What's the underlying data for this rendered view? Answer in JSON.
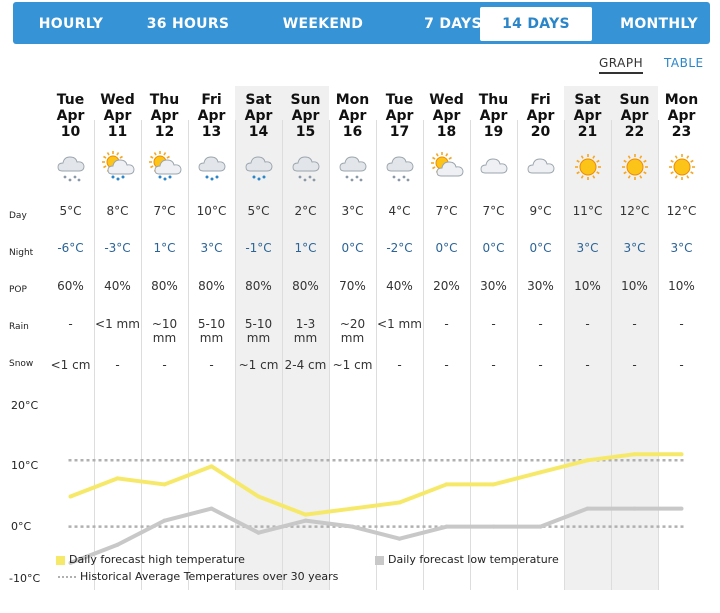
{
  "tabs": [
    {
      "label": "HOURLY",
      "active": false
    },
    {
      "label": "36 HOURS",
      "active": false
    },
    {
      "label": "WEEKEND",
      "active": false
    },
    {
      "label": "7 DAYS",
      "active": false
    },
    {
      "label": "14 DAYS",
      "active": true
    },
    {
      "label": "MONTHLY",
      "active": false
    }
  ],
  "view_toggle": {
    "graph": "GRAPH",
    "table": "TABLE",
    "selected": "graph"
  },
  "row_labels": {
    "day": "Day",
    "night": "Night",
    "pop": "POP",
    "rain": "Rain",
    "snow": "Snow"
  },
  "days": [
    {
      "dow": "Tue",
      "month": "Apr",
      "date": "10",
      "icon": "cloud-snow-icon",
      "day": "5°C",
      "night": "-6°C",
      "pop": "60%",
      "rain": "-",
      "snow": "<1 cm",
      "weekend": false
    },
    {
      "dow": "Wed",
      "month": "Apr",
      "date": "11",
      "icon": "sun-cloud-rain-icon",
      "day": "8°C",
      "night": "-3°C",
      "pop": "40%",
      "rain": "<1 mm",
      "snow": "-",
      "weekend": false
    },
    {
      "dow": "Thu",
      "month": "Apr",
      "date": "12",
      "icon": "sun-cloud-rain-icon",
      "day": "7°C",
      "night": "1°C",
      "pop": "80%",
      "rain": "~10 mm",
      "snow": "-",
      "weekend": false
    },
    {
      "dow": "Fri",
      "month": "Apr",
      "date": "13",
      "icon": "cloud-rain-icon",
      "day": "10°C",
      "night": "3°C",
      "pop": "80%",
      "rain": "5-10 mm",
      "snow": "-",
      "weekend": false
    },
    {
      "dow": "Sat",
      "month": "Apr",
      "date": "14",
      "icon": "cloud-rain-icon",
      "day": "5°C",
      "night": "-1°C",
      "pop": "80%",
      "rain": "5-10 mm",
      "snow": "~1 cm",
      "weekend": true
    },
    {
      "dow": "Sun",
      "month": "Apr",
      "date": "15",
      "icon": "cloud-snow-icon",
      "day": "2°C",
      "night": "1°C",
      "pop": "80%",
      "rain": "1-3 mm",
      "snow": "2-4 cm",
      "weekend": true
    },
    {
      "dow": "Mon",
      "month": "Apr",
      "date": "16",
      "icon": "cloud-snow-icon",
      "day": "3°C",
      "night": "0°C",
      "pop": "70%",
      "rain": "~20 mm",
      "snow": "~1 cm",
      "weekend": false
    },
    {
      "dow": "Tue",
      "month": "Apr",
      "date": "17",
      "icon": "cloud-snow-icon",
      "day": "4°C",
      "night": "-2°C",
      "pop": "40%",
      "rain": "<1 mm",
      "snow": "-",
      "weekend": false
    },
    {
      "dow": "Wed",
      "month": "Apr",
      "date": "18",
      "icon": "sun-cloud-icon",
      "day": "7°C",
      "night": "0°C",
      "pop": "20%",
      "rain": "-",
      "snow": "-",
      "weekend": false
    },
    {
      "dow": "Thu",
      "month": "Apr",
      "date": "19",
      "icon": "cloud-icon",
      "day": "7°C",
      "night": "0°C",
      "pop": "30%",
      "rain": "-",
      "snow": "-",
      "weekend": false
    },
    {
      "dow": "Fri",
      "month": "Apr",
      "date": "20",
      "icon": "cloud-icon",
      "day": "9°C",
      "night": "0°C",
      "pop": "30%",
      "rain": "-",
      "snow": "-",
      "weekend": false
    },
    {
      "dow": "Sat",
      "month": "Apr",
      "date": "21",
      "icon": "sun-icon",
      "day": "11°C",
      "night": "3°C",
      "pop": "10%",
      "rain": "-",
      "snow": "-",
      "weekend": true
    },
    {
      "dow": "Sun",
      "month": "Apr",
      "date": "22",
      "icon": "sun-icon",
      "day": "12°C",
      "night": "3°C",
      "pop": "10%",
      "rain": "-",
      "snow": "-",
      "weekend": true
    },
    {
      "dow": "Mon",
      "month": "Apr",
      "date": "23",
      "icon": "sun-icon",
      "day": "12°C",
      "night": "3°C",
      "pop": "10%",
      "rain": "-",
      "snow": "-",
      "weekend": false
    }
  ],
  "colors": {
    "high": "#f6e96a",
    "low": "#c8c8c8",
    "avg": "#b0b0b0",
    "tab_bg": "#3593d6"
  },
  "chart_data": {
    "type": "line",
    "ylim": [
      -10,
      20
    ],
    "yticks": [
      {
        "value": 20,
        "label": "20°C"
      },
      {
        "value": 10,
        "label": "10°C"
      },
      {
        "value": 0,
        "label": "0°C"
      },
      {
        "value": -10,
        "label": "-10°C"
      }
    ],
    "series": [
      {
        "name": "Daily forecast high temperature",
        "key": "high",
        "values": [
          5,
          8,
          7,
          10,
          5,
          2,
          3,
          4,
          7,
          7,
          9,
          11,
          12,
          12
        ]
      },
      {
        "name": "Daily forecast low temperature",
        "key": "low",
        "values": [
          -6,
          -3,
          1,
          3,
          -1,
          1,
          0,
          -2,
          0,
          0,
          0,
          3,
          3,
          3
        ]
      }
    ],
    "historical_average": {
      "name": "Historical Average Temperatures over 30 years",
      "high": 11,
      "low": 0
    }
  }
}
